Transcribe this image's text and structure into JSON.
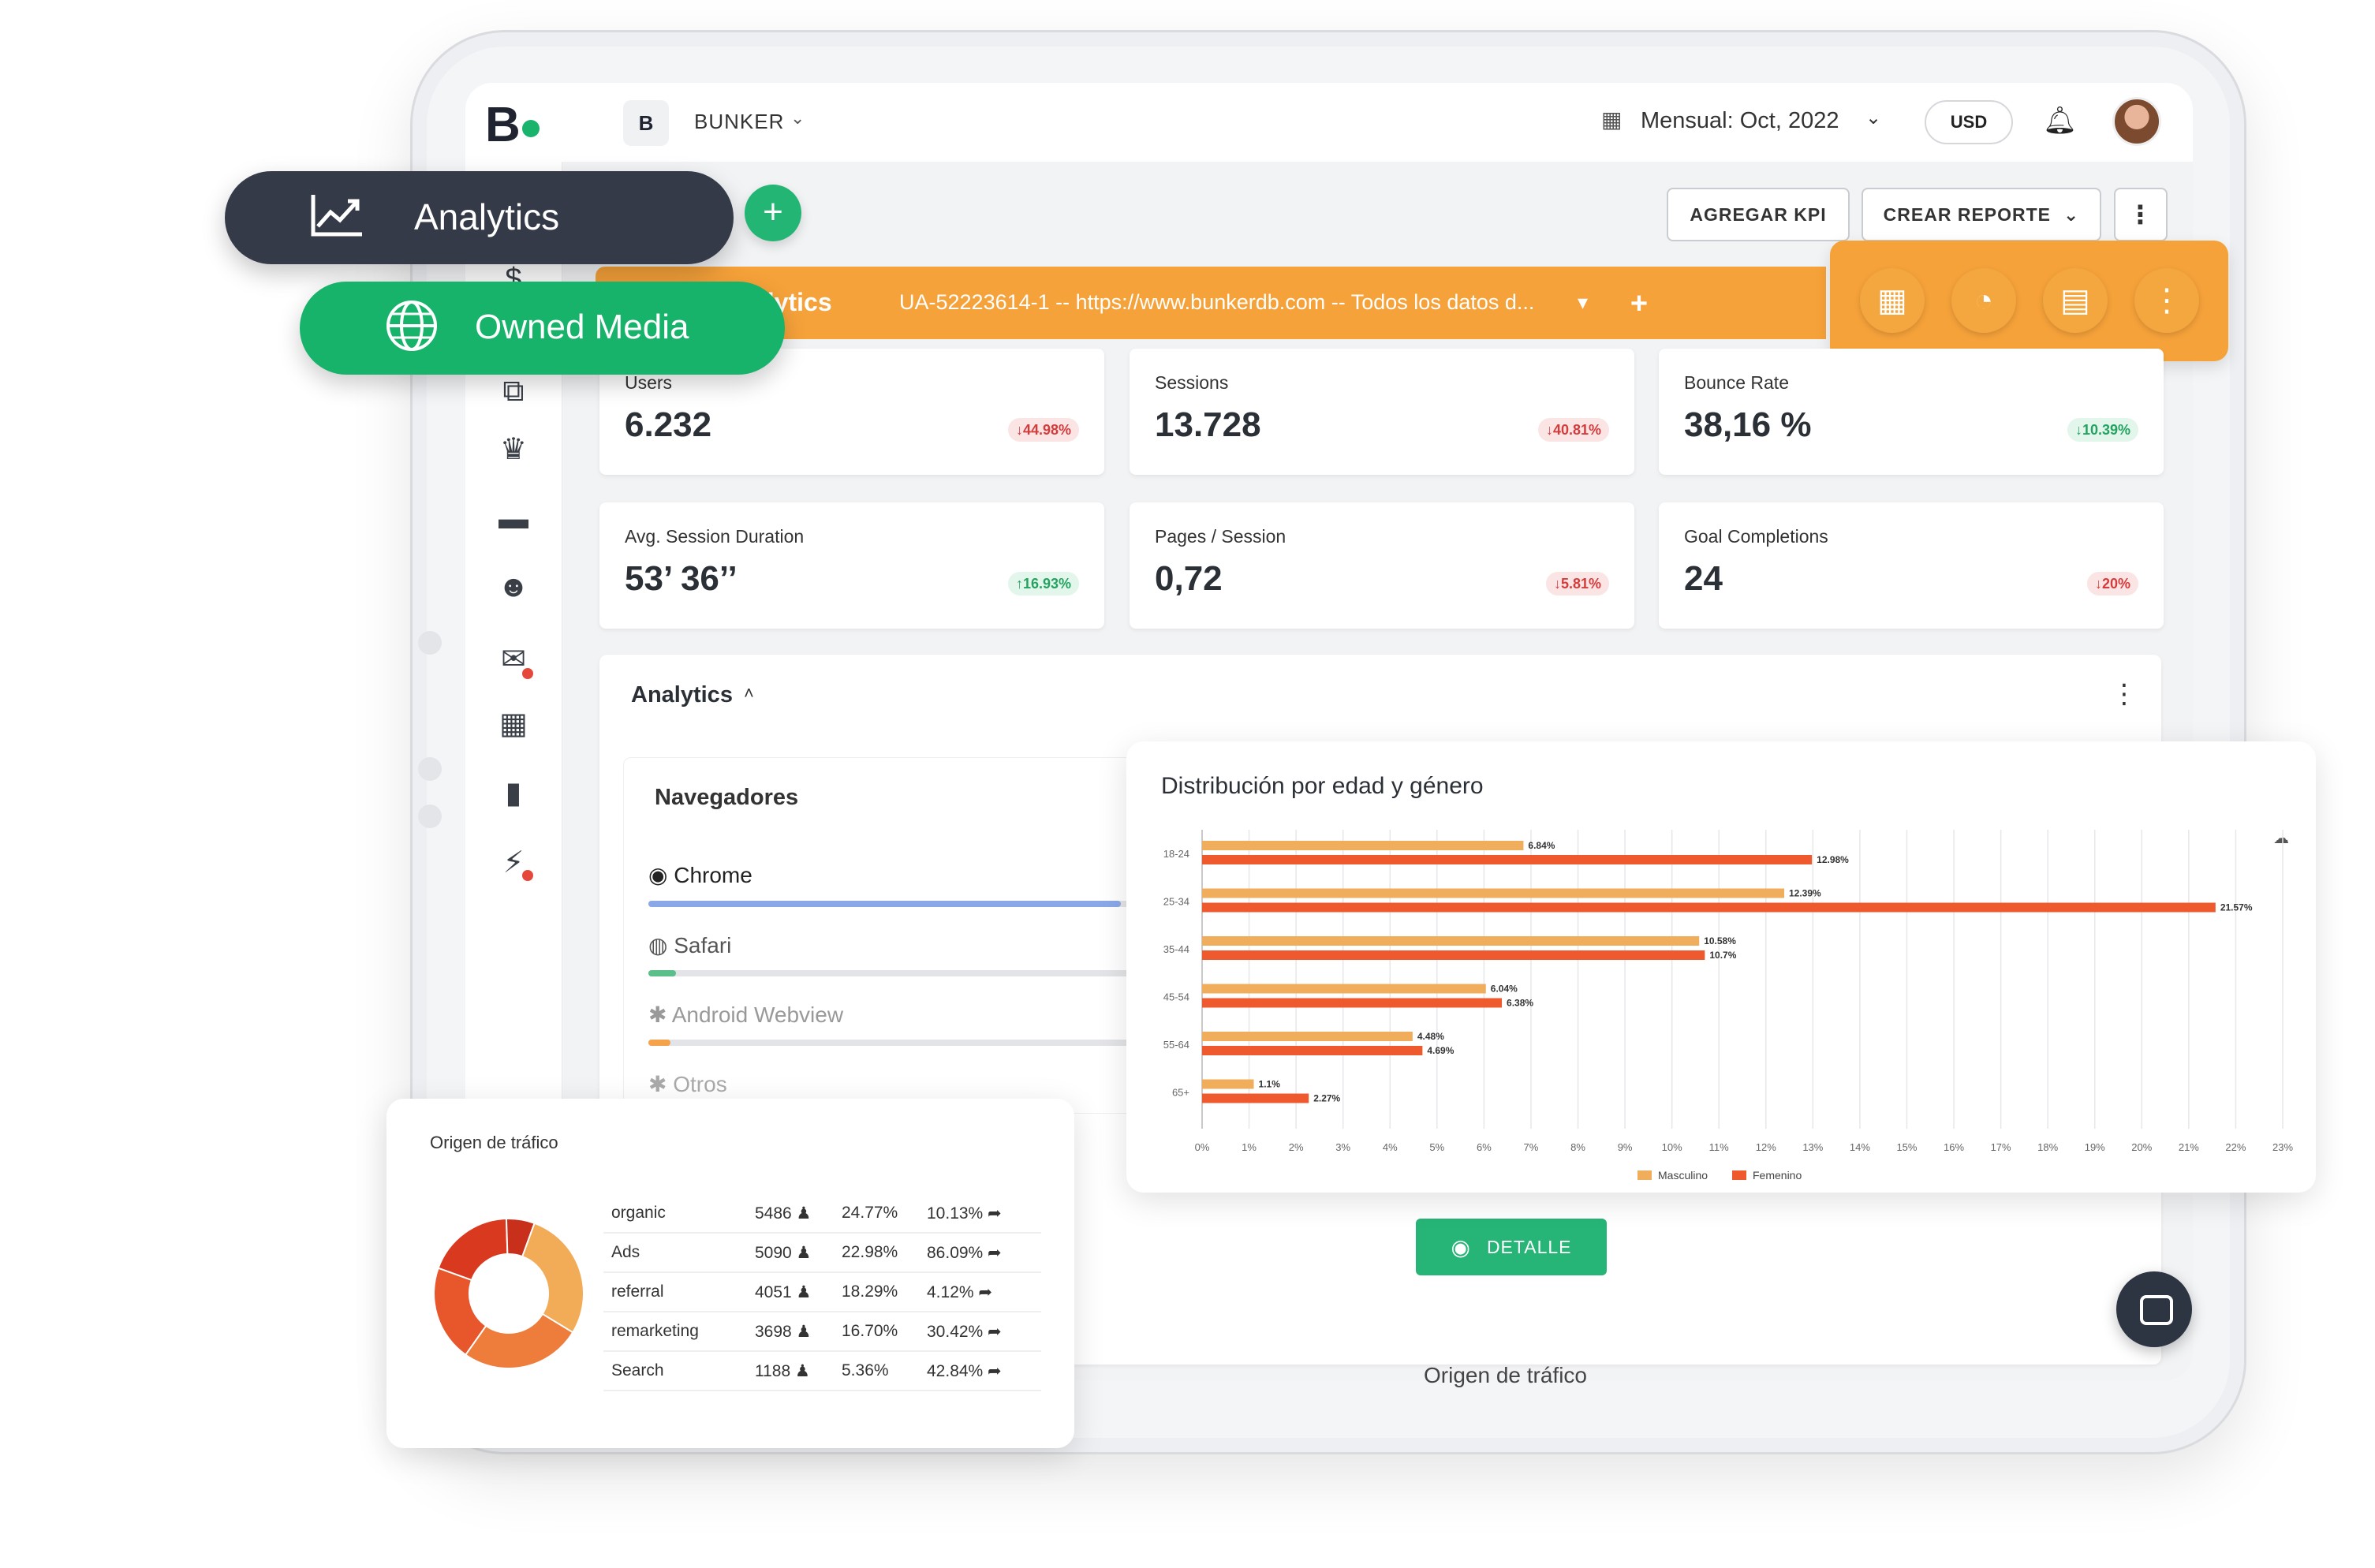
{
  "header": {
    "logo": "B",
    "workspace_badge": "B",
    "workspace_name": "BUNKER",
    "period_label": "Mensual: Oct, 2022",
    "currency": "USD"
  },
  "toolbar": {
    "add_kpi": "AGREGAR KPI",
    "create_report": "CREAR REPORTE"
  },
  "source_bar": {
    "title_fragment": "alytics",
    "account": "UA-52223614-1 -- https://www.bunkerdb.com -- Todos los datos d..."
  },
  "floating_pills": {
    "analytics": "Analytics",
    "owned_media": "Owned Media"
  },
  "kpis": [
    {
      "label": "Users",
      "value": "6.232",
      "change": "44.98%",
      "direction": "down"
    },
    {
      "label": "Sessions",
      "value": "13.728",
      "change": "40.81%",
      "direction": "down"
    },
    {
      "label": "Bounce Rate",
      "value": "38,16 %",
      "change": "10.39%",
      "direction": "down"
    },
    {
      "label": "Avg. Session Duration",
      "value": "53’ 36’’",
      "change": "16.93%",
      "direction": "up"
    },
    {
      "label": "Pages / Session",
      "value": "0,72",
      "change": "5.81%",
      "direction": "down"
    },
    {
      "label": "Goal Completions",
      "value": "24",
      "change": "20%",
      "direction": "down"
    }
  ],
  "analytics_section": {
    "title": "Analytics",
    "browsers_title": "Navegadores",
    "browsers": [
      {
        "name": "Chrome",
        "share": 0.95,
        "color": "#8aa8e8"
      },
      {
        "name": "Safari",
        "share": 0.055,
        "color": "#5bbf8a"
      },
      {
        "name": "Android Webview",
        "share": 0.045,
        "color": "#f5a34a"
      },
      {
        "name": "Otros",
        "share": 0.0,
        "color": "#cccccc"
      }
    ],
    "detail_button": "DETALLE",
    "bottom_heading": "Origen de tráfico"
  },
  "age_chart": {
    "title": "Distribución por edad y género"
  },
  "chart_data": [
    {
      "type": "bar",
      "orientation": "horizontal",
      "title": "Distribución por edad y género",
      "categories": [
        "18-24",
        "25-34",
        "35-44",
        "45-54",
        "55-64",
        "65+"
      ],
      "series": [
        {
          "name": "Masculino",
          "color": "#f0ad5c",
          "values": [
            6.84,
            12.39,
            10.58,
            6.04,
            4.48,
            1.1
          ]
        },
        {
          "name": "Femenino",
          "color": "#ee5a2e",
          "values": [
            12.98,
            21.57,
            10.7,
            6.38,
            4.69,
            2.27
          ]
        }
      ],
      "xlim": [
        0,
        23
      ],
      "x_ticks": [
        "0%",
        "1%",
        "2%",
        "3%",
        "4%",
        "5%",
        "6%",
        "7%",
        "8%",
        "9%",
        "10%",
        "11%",
        "12%",
        "13%",
        "14%",
        "15%",
        "16%",
        "17%",
        "18%",
        "19%",
        "20%",
        "21%",
        "22%",
        "23%"
      ],
      "value_suffix": "%",
      "legend": "bottom-center",
      "grid": true
    },
    {
      "type": "pie",
      "variant": "donut",
      "title": "Origen de tráfico",
      "categories": [
        "organic",
        "Ads",
        "referral",
        "remarketing",
        "Search"
      ],
      "values": [
        24.77,
        22.98,
        18.29,
        16.7,
        5.36
      ],
      "colors": [
        "#f2ac58",
        "#ee7d3c",
        "#e8562c",
        "#d9391f",
        "#c9301c"
      ]
    }
  ],
  "traffic": {
    "title": "Origen de tráfico",
    "rows": [
      {
        "source": "organic",
        "users": "5486",
        "share": "24.77%",
        "bounce": "10.13%"
      },
      {
        "source": "Ads",
        "users": "5090",
        "share": "22.98%",
        "bounce": "86.09%"
      },
      {
        "source": "referral",
        "users": "4051",
        "share": "18.29%",
        "bounce": "4.12%"
      },
      {
        "source": "remarketing",
        "users": "3698",
        "share": "16.70%",
        "bounce": "30.42%"
      },
      {
        "source": "Search",
        "users": "1188",
        "share": "5.36%",
        "bounce": "42.84%"
      }
    ]
  },
  "icons": {
    "sidebar": [
      "rocket-icon",
      "dollar-icon",
      "smile-icon",
      "copy-icon",
      "trophy-icon",
      "folder-icon",
      "users-icon",
      "mail-icon",
      "table-icon",
      "file-icon",
      "plug-icon"
    ],
    "orange_panel": [
      "grid-icon",
      "gauge-icon",
      "table-icon",
      "kebab-icon"
    ]
  }
}
